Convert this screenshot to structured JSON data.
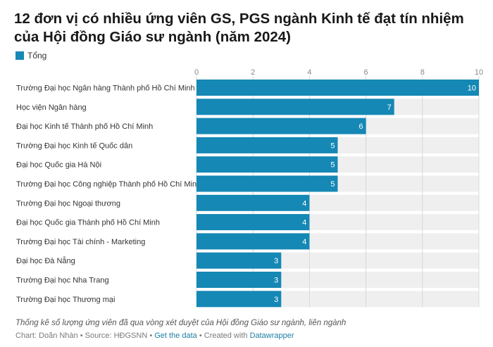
{
  "title": "12 đơn vị có nhiều ứng viên GS, PGS ngành Kinh tế đạt tín nhiệm của Hội đồng Giáo sư ngành (năm 2024)",
  "legend_label": "Tổng",
  "colors": {
    "bar": "#1588b5",
    "track": "#efefef",
    "grid": "#d8d8d8"
  },
  "note": "Thống kê số lượng ứng viên đã qua vòng xét duyệt của Hội đồng Giáo sư ngành, liên ngành",
  "footer": {
    "credit": "Chart: Doãn Nhàn • Source: HĐGSNN • ",
    "get_data": "Get the data",
    "created": " • Created with ",
    "datawrapper": "Datawrapper"
  },
  "chart_data": {
    "type": "bar",
    "orientation": "horizontal",
    "categories": [
      "Trường Đại học Ngân hàng Thành phố Hồ Chí Minh",
      "Học viện Ngân hàng",
      "Đại học Kinh tế Thành phố Hồ Chí Minh",
      "Trường Đại học Kinh tế Quốc dân",
      "Đại học Quốc gia Hà Nội",
      "Trường Đại học Công nghiệp Thành phố Hồ Chí Minh",
      "Trường Đại học Ngoại thương",
      "Đại học Quốc gia Thành phố Hồ Chí Minh",
      "Trường Đại học Tài chính - Marketing",
      "Đại học Đà Nẵng",
      "Trường Đại học Nha Trang",
      "Trường Đại học Thương mại"
    ],
    "series": [
      {
        "name": "Tổng",
        "values": [
          10,
          7,
          6,
          5,
          5,
          5,
          4,
          4,
          4,
          3,
          3,
          3
        ]
      }
    ],
    "xlim": [
      0,
      10
    ],
    "ticks": [
      0,
      2,
      4,
      6,
      8,
      10
    ],
    "grid": true,
    "legend": "top-left"
  }
}
